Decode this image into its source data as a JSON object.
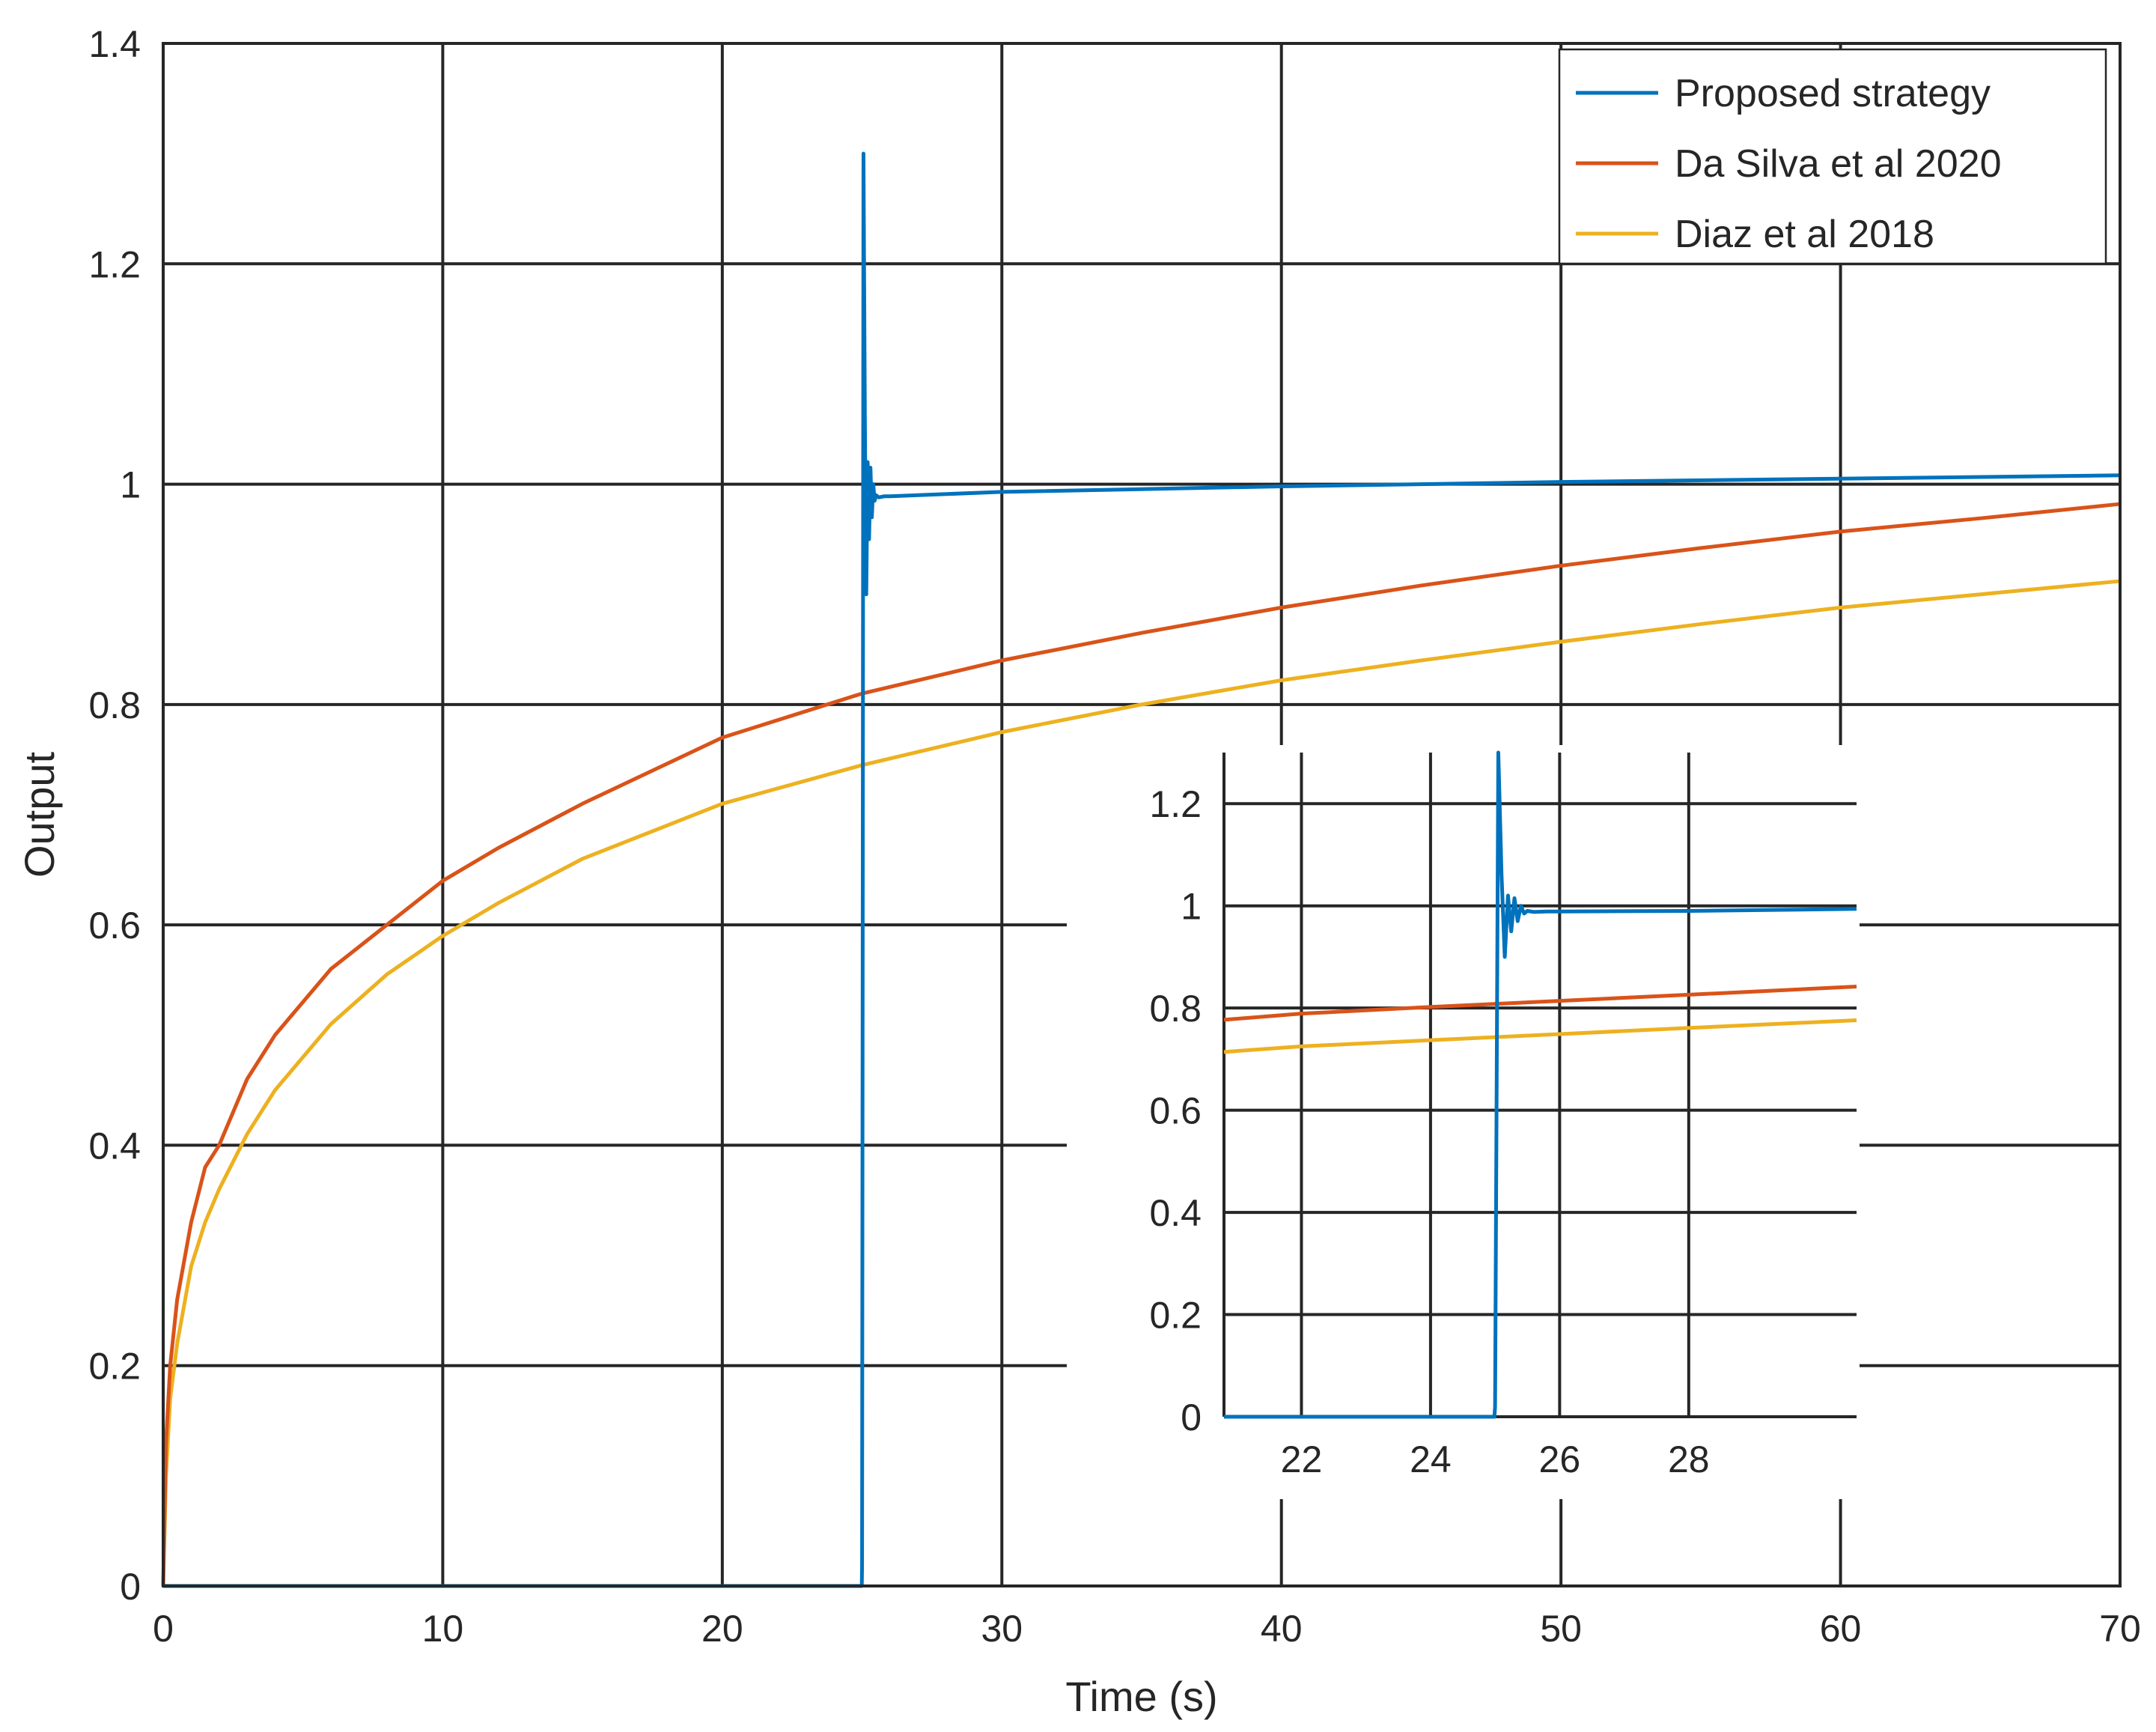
{
  "chart_data": [
    {
      "id": "main",
      "type": "line",
      "title": "",
      "xlabel": "Time (s)",
      "ylabel": "Output",
      "xlim": [
        0,
        70
      ],
      "ylim": [
        0,
        1.4
      ],
      "xticks": [
        0,
        10,
        20,
        30,
        40,
        50,
        60,
        70
      ],
      "yticks": [
        0,
        0.2,
        0.4,
        0.6,
        0.8,
        1,
        1.2,
        1.4
      ],
      "xtick_labels": [
        "0",
        "10",
        "20",
        "30",
        "40",
        "50",
        "60",
        "70"
      ],
      "ytick_labels": [
        "0",
        "0.2",
        "0.4",
        "0.6",
        "0.8",
        "1",
        "1.2",
        "1.4"
      ],
      "grid": true,
      "legend_position": "top-right",
      "series": [
        {
          "name": "Proposed strategy",
          "color": "#0072BD",
          "x": [
            0,
            24.99,
            25.0,
            25.05,
            25.1,
            25.15,
            25.2,
            25.25,
            25.3,
            25.35,
            25.4,
            25.45,
            25.5,
            25.6,
            25.8,
            26,
            30,
            40,
            50,
            60,
            70
          ],
          "y": [
            0,
            0,
            0.02,
            1.3,
            1.06,
            0.9,
            1.02,
            0.95,
            1.015,
            0.97,
            1.0,
            0.985,
            0.99,
            0.988,
            0.989,
            0.989,
            0.993,
            0.998,
            1.002,
            1.005,
            1.008
          ]
        },
        {
          "name": "Da Silva et al 2020",
          "color": "#D95319",
          "x": [
            0,
            0.1,
            0.25,
            0.5,
            1,
            1.5,
            2,
            3,
            4,
            5,
            6,
            8,
            10,
            12,
            15,
            20,
            25,
            30,
            35,
            40,
            45,
            50,
            55,
            60,
            65,
            70
          ],
          "y": [
            0,
            0.13,
            0.2,
            0.26,
            0.33,
            0.38,
            0.4,
            0.46,
            0.5,
            0.53,
            0.56,
            0.6,
            0.64,
            0.67,
            0.71,
            0.77,
            0.81,
            0.84,
            0.865,
            0.888,
            0.908,
            0.926,
            0.942,
            0.957,
            0.969,
            0.982
          ]
        },
        {
          "name": "Diaz et al 2018",
          "color": "#EDB120",
          "x": [
            0,
            0.1,
            0.25,
            0.5,
            1,
            1.5,
            2,
            3,
            4,
            5,
            6,
            8,
            10,
            12,
            15,
            20,
            25,
            30,
            35,
            40,
            45,
            50,
            55,
            60,
            65,
            70
          ],
          "y": [
            0,
            0.1,
            0.17,
            0.22,
            0.29,
            0.33,
            0.36,
            0.41,
            0.45,
            0.48,
            0.51,
            0.555,
            0.59,
            0.62,
            0.66,
            0.71,
            0.745,
            0.775,
            0.8,
            0.822,
            0.84,
            0.857,
            0.873,
            0.888,
            0.9,
            0.912
          ]
        }
      ]
    },
    {
      "id": "inset",
      "type": "line",
      "title": "",
      "xlabel": "",
      "ylabel": "",
      "xlim": [
        20.8,
        30.6
      ],
      "ylim": [
        0,
        1.3
      ],
      "xticks": [
        22,
        24,
        26,
        28
      ],
      "yticks": [
        0,
        0.2,
        0.4,
        0.6,
        0.8,
        1,
        1.2
      ],
      "xtick_labels": [
        "22",
        "24",
        "26",
        "28"
      ],
      "ytick_labels": [
        "0",
        "0.2",
        "0.4",
        "0.6",
        "0.8",
        "1",
        "1.2"
      ],
      "grid": true,
      "series": [
        {
          "name": "Proposed strategy",
          "color": "#0072BD",
          "x": [
            20.8,
            24.99,
            25.0,
            25.05,
            25.1,
            25.15,
            25.2,
            25.25,
            25.3,
            25.35,
            25.4,
            25.45,
            25.5,
            25.6,
            25.8,
            26,
            28,
            30.6
          ],
          "y": [
            0,
            0,
            0.02,
            1.3,
            1.06,
            0.9,
            1.02,
            0.95,
            1.015,
            0.97,
            1.0,
            0.985,
            0.99,
            0.988,
            0.989,
            0.989,
            0.99,
            0.994
          ]
        },
        {
          "name": "Da Silva et al 2020",
          "color": "#D95319",
          "x": [
            20.8,
            22,
            24,
            26,
            28,
            30.6
          ],
          "y": [
            0.777,
            0.789,
            0.802,
            0.814,
            0.826,
            0.842
          ]
        },
        {
          "name": "Diaz et al 2018",
          "color": "#EDB120",
          "x": [
            20.8,
            22,
            24,
            26,
            28,
            30.6
          ],
          "y": [
            0.714,
            0.725,
            0.737,
            0.749,
            0.761,
            0.776
          ]
        }
      ]
    }
  ]
}
